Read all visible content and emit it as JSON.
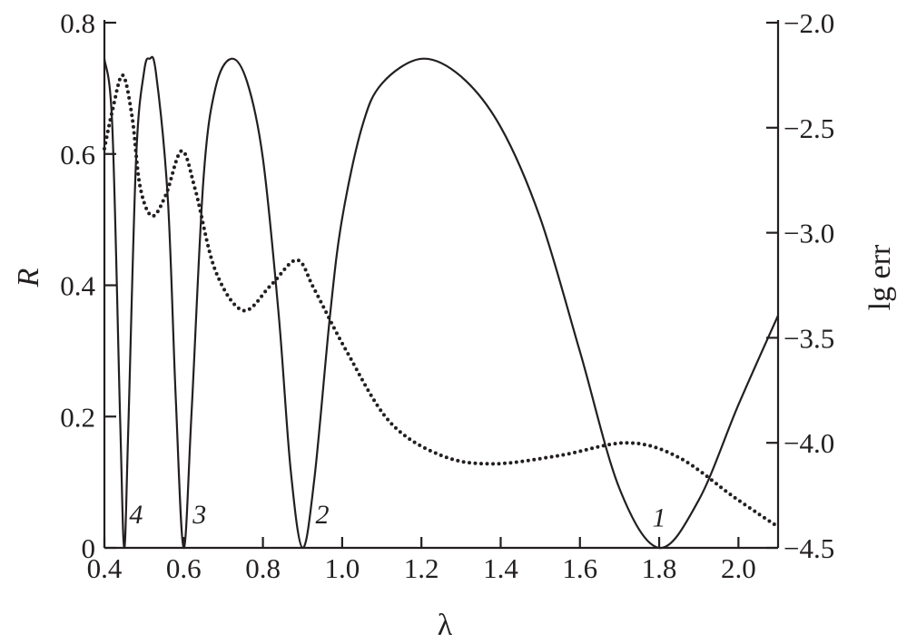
{
  "chart_data": {
    "type": "line",
    "xlabel": "λ",
    "ylabel": "R",
    "y2label": "lg err",
    "xlim": [
      0.4,
      2.1
    ],
    "ylim": [
      0,
      0.8
    ],
    "y2lim": [
      -4.5,
      -2.0
    ],
    "xticks": [
      "0.4",
      "0.6",
      "0.8",
      "1.0",
      "1.2",
      "1.4",
      "1.6",
      "1.8",
      "2.0"
    ],
    "yticks": [
      "0",
      "0.2",
      "0.4",
      "0.6",
      "0.8"
    ],
    "y2ticks": [
      "−2.0",
      "−2.5",
      "−3.0",
      "−3.5",
      "−4.0",
      "−4.5"
    ],
    "grid": false,
    "series": [
      {
        "style": "solid",
        "axis": "left",
        "color": "#231f20",
        "x": [
          0.4,
          0.42,
          0.44,
          0.45,
          0.46,
          0.48,
          0.5,
          0.514,
          0.53,
          0.56,
          0.58,
          0.6,
          0.62,
          0.65,
          0.68,
          0.72,
          0.76,
          0.8,
          0.84,
          0.87,
          0.9,
          0.93,
          0.97,
          1.0,
          1.05,
          1.1,
          1.2,
          1.3,
          1.4,
          1.5,
          1.6,
          1.7,
          1.8,
          1.9,
          2.0,
          2.1
        ],
        "y": [
          0.745,
          0.641,
          0.189,
          0.0,
          0.176,
          0.593,
          0.725,
          0.745,
          0.724,
          0.532,
          0.229,
          0.0,
          0.207,
          0.562,
          0.7,
          0.745,
          0.71,
          0.593,
          0.354,
          0.119,
          0.0,
          0.106,
          0.358,
          0.502,
          0.641,
          0.707,
          0.745,
          0.718,
          0.641,
          0.502,
          0.299,
          0.09,
          0.0,
          0.073,
          0.218,
          0.354
        ]
      },
      {
        "style": "dotted",
        "axis": "right",
        "color": "#231f20",
        "x": [
          0.4,
          0.42,
          0.446,
          0.47,
          0.49,
          0.52,
          0.555,
          0.595,
          0.63,
          0.68,
          0.75,
          0.82,
          0.886,
          0.93,
          1.01,
          1.12,
          1.25,
          1.38,
          1.55,
          1.72,
          1.85,
          1.99,
          2.1
        ],
        "y": [
          -2.6,
          -2.42,
          -2.25,
          -2.45,
          -2.78,
          -2.92,
          -2.82,
          -2.61,
          -2.8,
          -3.18,
          -3.37,
          -3.25,
          -3.13,
          -3.27,
          -3.56,
          -3.9,
          -4.06,
          -4.1,
          -4.06,
          -4.0,
          -4.07,
          -4.26,
          -4.4
        ]
      }
    ],
    "annotations": [
      {
        "text": "4",
        "x": 0.48,
        "y": 0.04
      },
      {
        "text": "3",
        "x": 0.64,
        "y": 0.04
      },
      {
        "text": "2",
        "x": 0.95,
        "y": 0.04
      },
      {
        "text": "1",
        "x": 1.8,
        "y": 0.035
      }
    ]
  }
}
